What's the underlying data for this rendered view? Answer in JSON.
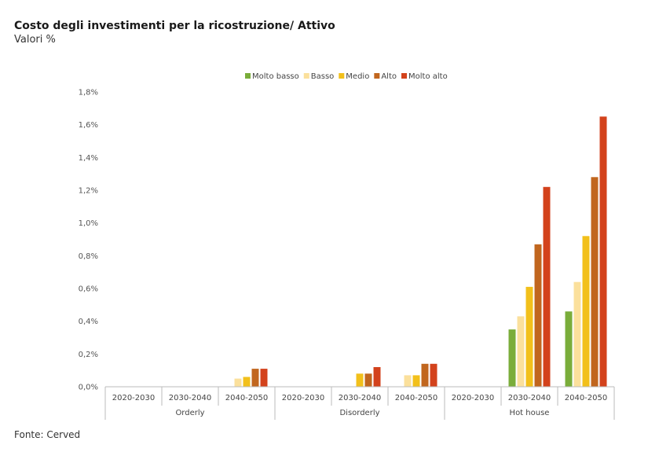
{
  "header": {
    "title": "Costo degli investimenti per la ricostruzione/ Attivo",
    "subtitle": "Valori %"
  },
  "footer": {
    "source": "Fonte: Cerved"
  },
  "chart_data": {
    "type": "bar",
    "title": "Costo degli investimenti per la ricostruzione/ Attivo",
    "subtitle": "Valori %",
    "xlabel": "",
    "ylabel": "",
    "ylim": [
      0,
      1.8
    ],
    "ytick_values": [
      0,
      0.2,
      0.4,
      0.6,
      0.8,
      1.0,
      1.2,
      1.4,
      1.6,
      1.8
    ],
    "ytick_labels": [
      "0,0%",
      "0,2%",
      "0,4%",
      "0,6%",
      "0,8%",
      "1,0%",
      "1,2%",
      "1,4%",
      "1,6%",
      "1,8%"
    ],
    "groups": [
      "Orderly",
      "Disorderly",
      "Hot house"
    ],
    "categories": [
      "2020-2030",
      "2030-2040",
      "2040-2050",
      "2020-2030",
      "2030-2040",
      "2040-2050",
      "2020-2030",
      "2030-2040",
      "2040-2050"
    ],
    "legend_position": "top-center",
    "grid": false,
    "series": [
      {
        "name": "Molto basso",
        "color": "#7aad3a",
        "values": [
          0,
          0,
          0,
          0,
          0,
          0,
          0,
          0.35,
          0.46
        ]
      },
      {
        "name": "Basso",
        "color": "#fbe09c",
        "values": [
          0,
          0,
          0.05,
          0,
          0,
          0.07,
          0,
          0.43,
          0.64
        ]
      },
      {
        "name": "Medio",
        "color": "#f2c01b",
        "values": [
          0,
          0,
          0.06,
          0,
          0.08,
          0.07,
          0,
          0.61,
          0.92
        ]
      },
      {
        "name": "Alto",
        "color": "#c1661e",
        "values": [
          0,
          0,
          0.11,
          0,
          0.08,
          0.14,
          0,
          0.87,
          1.28
        ]
      },
      {
        "name": "Molto alto",
        "color": "#d3421c",
        "values": [
          0,
          0,
          0.11,
          0,
          0.12,
          0.14,
          0,
          1.22,
          1.65
        ]
      }
    ]
  }
}
